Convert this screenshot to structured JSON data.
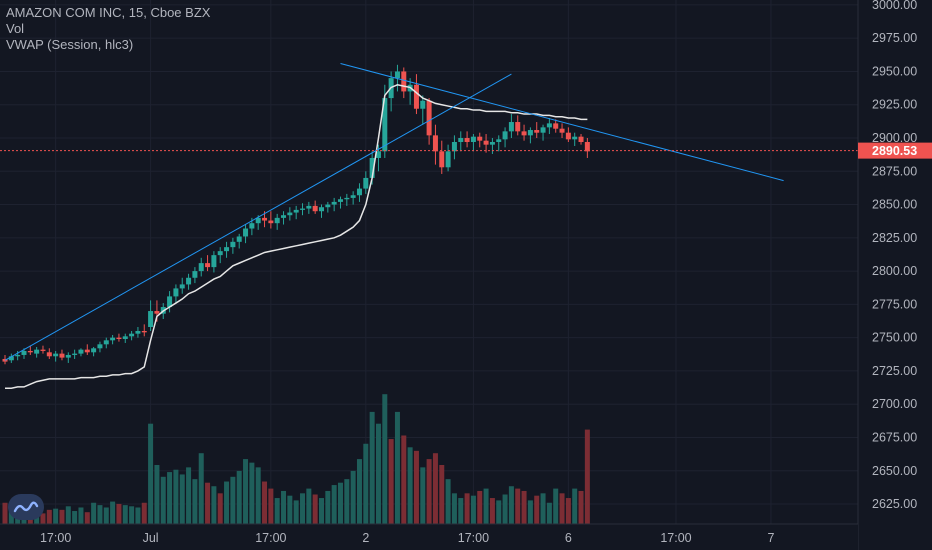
{
  "legend": {
    "symbol": "AMAZON COM INC, 15, Cboe BZX",
    "volume": "Vol",
    "vwap": "VWAP (Session, hlc3)"
  },
  "colors": {
    "background": "#131722",
    "grid": "#1e2230",
    "up": "#26a69a",
    "down": "#ef5350",
    "vol_up": "#1f5f5b",
    "vol_down": "#7c2d34",
    "vwap": "#e6e6e6",
    "trendline": "#2196f3",
    "axis_text": "#b2b5be",
    "price_label": "#ef5350"
  },
  "chart_data": {
    "type": "candlestick",
    "symbol": "AMAZON COM INC",
    "interval": "15",
    "exchange": "Cboe BZX",
    "y_axis": {
      "range": [
        2610,
        3010
      ],
      "ticks": [
        3000,
        2975,
        2950,
        2925,
        2900,
        2875,
        2850,
        2825,
        2800,
        2775,
        2750,
        2725,
        2700,
        2675,
        2650,
        2625
      ],
      "tick_labels": [
        "3000.00",
        "2975.00",
        "2950.00",
        "2925.00",
        "2900.00",
        "2875.00",
        "2850.00",
        "2825.00",
        "2800.00",
        "2775.00",
        "2750.00",
        "2725.00",
        "2700.00",
        "2675.00",
        "2650.00",
        "2625.00"
      ]
    },
    "x_axis": {
      "ticks": [
        "17:00",
        "Jul",
        "17:00",
        "2",
        "17:00",
        "6",
        "17:00",
        "7"
      ],
      "tick_bars": [
        8,
        23,
        42,
        57,
        74,
        89,
        106,
        121
      ]
    },
    "last_price": 2890.53,
    "last_price_label": "2890.53",
    "candles": [
      [
        2734,
        2737,
        2730,
        2732
      ],
      [
        2733,
        2738,
        2731,
        2736
      ],
      [
        2736,
        2740,
        2733,
        2737
      ],
      [
        2737,
        2742,
        2734,
        2740
      ],
      [
        2740,
        2744,
        2737,
        2739
      ],
      [
        2738,
        2743,
        2735,
        2741
      ],
      [
        2741,
        2744,
        2738,
        2740
      ],
      [
        2739,
        2742,
        2734,
        2736
      ],
      [
        2736,
        2740,
        2732,
        2738
      ],
      [
        2738,
        2741,
        2733,
        2735
      ],
      [
        2735,
        2739,
        2731,
        2737
      ],
      [
        2737,
        2741,
        2734,
        2738
      ],
      [
        2738,
        2742,
        2736,
        2741
      ],
      [
        2741,
        2745,
        2737,
        2739
      ],
      [
        2739,
        2743,
        2736,
        2742
      ],
      [
        2742,
        2747,
        2739,
        2745
      ],
      [
        2745,
        2750,
        2742,
        2748
      ],
      [
        2748,
        2752,
        2745,
        2750
      ],
      [
        2750,
        2753,
        2747,
        2749
      ],
      [
        2749,
        2753,
        2746,
        2751
      ],
      [
        2751,
        2755,
        2748,
        2753
      ],
      [
        2753,
        2758,
        2750,
        2755
      ],
      [
        2755,
        2760,
        2751,
        2754
      ],
      [
        2758,
        2778,
        2755,
        2770
      ],
      [
        2770,
        2778,
        2762,
        2768
      ],
      [
        2768,
        2776,
        2764,
        2773
      ],
      [
        2773,
        2785,
        2769,
        2781
      ],
      [
        2781,
        2790,
        2776,
        2787
      ],
      [
        2787,
        2795,
        2783,
        2790
      ],
      [
        2790,
        2798,
        2786,
        2795
      ],
      [
        2795,
        2803,
        2791,
        2800
      ],
      [
        2800,
        2810,
        2796,
        2806
      ],
      [
        2806,
        2812,
        2800,
        2803
      ],
      [
        2803,
        2815,
        2799,
        2812
      ],
      [
        2812,
        2818,
        2806,
        2815
      ],
      [
        2815,
        2822,
        2810,
        2818
      ],
      [
        2818,
        2825,
        2813,
        2822
      ],
      [
        2822,
        2828,
        2817,
        2826
      ],
      [
        2826,
        2835,
        2821,
        2832
      ],
      [
        2832,
        2840,
        2827,
        2836
      ],
      [
        2836,
        2842,
        2831,
        2840
      ],
      [
        2840,
        2845,
        2833,
        2838
      ],
      [
        2838,
        2845,
        2832,
        2836
      ],
      [
        2836,
        2843,
        2831,
        2840
      ],
      [
        2840,
        2845,
        2835,
        2842
      ],
      [
        2842,
        2848,
        2838,
        2844
      ],
      [
        2844,
        2849,
        2839,
        2846
      ],
      [
        2846,
        2851,
        2842,
        2847
      ],
      [
        2847,
        2852,
        2843,
        2849
      ],
      [
        2849,
        2853,
        2843,
        2845
      ],
      [
        2845,
        2850,
        2840,
        2848
      ],
      [
        2848,
        2852,
        2844,
        2850
      ],
      [
        2850,
        2855,
        2845,
        2852
      ],
      [
        2852,
        2856,
        2847,
        2854
      ],
      [
        2854,
        2858,
        2849,
        2855
      ],
      [
        2855,
        2860,
        2850,
        2857
      ],
      [
        2857,
        2866,
        2852,
        2862
      ],
      [
        2862,
        2875,
        2858,
        2870
      ],
      [
        2870,
        2890,
        2865,
        2885
      ],
      [
        2885,
        2895,
        2875,
        2890
      ],
      [
        2890,
        2940,
        2885,
        2930
      ],
      [
        2930,
        2950,
        2920,
        2945
      ],
      [
        2945,
        2955,
        2935,
        2950
      ],
      [
        2950,
        2953,
        2930,
        2935
      ],
      [
        2935,
        2945,
        2925,
        2940
      ],
      [
        2940,
        2948,
        2918,
        2922
      ],
      [
        2922,
        2932,
        2910,
        2928
      ],
      [
        2928,
        2930,
        2895,
        2902
      ],
      [
        2902,
        2910,
        2880,
        2890
      ],
      [
        2890,
        2898,
        2873,
        2878
      ],
      [
        2878,
        2895,
        2875,
        2890
      ],
      [
        2890,
        2902,
        2884,
        2897
      ],
      [
        2897,
        2905,
        2890,
        2900
      ],
      [
        2900,
        2905,
        2893,
        2897
      ],
      [
        2897,
        2903,
        2890,
        2901
      ],
      [
        2901,
        2904,
        2893,
        2898
      ],
      [
        2898,
        2903,
        2889,
        2895
      ],
      [
        2895,
        2900,
        2888,
        2897
      ],
      [
        2897,
        2902,
        2890,
        2899
      ],
      [
        2899,
        2908,
        2893,
        2905
      ],
      [
        2905,
        2918,
        2900,
        2912
      ],
      [
        2912,
        2917,
        2902,
        2905
      ],
      [
        2905,
        2910,
        2898,
        2902
      ],
      [
        2902,
        2908,
        2896,
        2906
      ],
      [
        2906,
        2912,
        2900,
        2904
      ],
      [
        2904,
        2910,
        2898,
        2908
      ],
      [
        2908,
        2915,
        2903,
        2911
      ],
      [
        2911,
        2914,
        2904,
        2907
      ],
      [
        2907,
        2911,
        2900,
        2904
      ],
      [
        2904,
        2908,
        2897,
        2899
      ],
      [
        2899,
        2904,
        2894,
        2901
      ],
      [
        2901,
        2903,
        2895,
        2897
      ],
      [
        2897,
        2900,
        2885,
        2890
      ]
    ],
    "volume": [
      {
        "v": 18,
        "up": false
      },
      {
        "v": 16,
        "up": true
      },
      {
        "v": 12,
        "up": true
      },
      {
        "v": 14,
        "up": true
      },
      {
        "v": 10,
        "up": false
      },
      {
        "v": 11,
        "up": true
      },
      {
        "v": 9,
        "up": false
      },
      {
        "v": 12,
        "up": false
      },
      {
        "v": 13,
        "up": true
      },
      {
        "v": 12,
        "up": false
      },
      {
        "v": 15,
        "up": true
      },
      {
        "v": 11,
        "up": true
      },
      {
        "v": 14,
        "up": true
      },
      {
        "v": 10,
        "up": false
      },
      {
        "v": 18,
        "up": true
      },
      {
        "v": 16,
        "up": true
      },
      {
        "v": 14,
        "up": true
      },
      {
        "v": 19,
        "up": true
      },
      {
        "v": 17,
        "up": false
      },
      {
        "v": 16,
        "up": true
      },
      {
        "v": 15,
        "up": true
      },
      {
        "v": 14,
        "up": true
      },
      {
        "v": 18,
        "up": false
      },
      {
        "v": 85,
        "up": true
      },
      {
        "v": 50,
        "up": true
      },
      {
        "v": 40,
        "up": true
      },
      {
        "v": 44,
        "up": true
      },
      {
        "v": 46,
        "up": true
      },
      {
        "v": 42,
        "up": true
      },
      {
        "v": 48,
        "up": true
      },
      {
        "v": 38,
        "up": true
      },
      {
        "v": 60,
        "up": true
      },
      {
        "v": 35,
        "up": false
      },
      {
        "v": 32,
        "up": true
      },
      {
        "v": 26,
        "up": false
      },
      {
        "v": 36,
        "up": true
      },
      {
        "v": 40,
        "up": true
      },
      {
        "v": 45,
        "up": true
      },
      {
        "v": 55,
        "up": true
      },
      {
        "v": 52,
        "up": true
      },
      {
        "v": 48,
        "up": true
      },
      {
        "v": 36,
        "up": false
      },
      {
        "v": 30,
        "up": false
      },
      {
        "v": 22,
        "up": true
      },
      {
        "v": 28,
        "up": true
      },
      {
        "v": 24,
        "up": true
      },
      {
        "v": 20,
        "up": true
      },
      {
        "v": 26,
        "up": true
      },
      {
        "v": 30,
        "up": true
      },
      {
        "v": 25,
        "up": false
      },
      {
        "v": 22,
        "up": true
      },
      {
        "v": 28,
        "up": true
      },
      {
        "v": 33,
        "up": true
      },
      {
        "v": 35,
        "up": true
      },
      {
        "v": 38,
        "up": true
      },
      {
        "v": 45,
        "up": true
      },
      {
        "v": 55,
        "up": true
      },
      {
        "v": 68,
        "up": true
      },
      {
        "v": 95,
        "up": true
      },
      {
        "v": 85,
        "up": true
      },
      {
        "v": 110,
        "up": true
      },
      {
        "v": 72,
        "up": false
      },
      {
        "v": 95,
        "up": true
      },
      {
        "v": 75,
        "up": false
      },
      {
        "v": 65,
        "up": true
      },
      {
        "v": 62,
        "up": false
      },
      {
        "v": 48,
        "up": true
      },
      {
        "v": 55,
        "up": false
      },
      {
        "v": 60,
        "up": false
      },
      {
        "v": 50,
        "up": false
      },
      {
        "v": 38,
        "up": true
      },
      {
        "v": 26,
        "up": true
      },
      {
        "v": 22,
        "up": true
      },
      {
        "v": 26,
        "up": false
      },
      {
        "v": 24,
        "up": true
      },
      {
        "v": 28,
        "up": false
      },
      {
        "v": 30,
        "up": true
      },
      {
        "v": 22,
        "up": false
      },
      {
        "v": 20,
        "up": true
      },
      {
        "v": 25,
        "up": true
      },
      {
        "v": 32,
        "up": true
      },
      {
        "v": 30,
        "up": false
      },
      {
        "v": 28,
        "up": false
      },
      {
        "v": 20,
        "up": true
      },
      {
        "v": 24,
        "up": false
      },
      {
        "v": 26,
        "up": true
      },
      {
        "v": 18,
        "up": true
      },
      {
        "v": 30,
        "up": true
      },
      {
        "v": 26,
        "up": false
      },
      {
        "v": 22,
        "up": false
      },
      {
        "v": 30,
        "up": true
      },
      {
        "v": 28,
        "up": false
      },
      {
        "v": 80,
        "up": false
      }
    ],
    "vwap": [
      2712,
      2712,
      2713,
      2713,
      2715,
      2717,
      2718,
      2719,
      2719,
      2719,
      2719,
      2719,
      2720,
      2720,
      2720,
      2721,
      2721,
      2722,
      2722,
      2723,
      2723,
      2725,
      2728,
      2748,
      2766,
      2770,
      2773,
      2776,
      2779,
      2783,
      2785,
      2788,
      2791,
      2794,
      2796,
      2800,
      2804,
      2806,
      2808,
      2810,
      2812,
      2814,
      2815,
      2816,
      2817,
      2818,
      2819,
      2820,
      2821,
      2822,
      2823,
      2824,
      2825,
      2827,
      2830,
      2833,
      2838,
      2850,
      2870,
      2900,
      2932,
      2938,
      2940,
      2939,
      2938,
      2934,
      2930,
      2928,
      2926,
      2925,
      2924,
      2923,
      2922,
      2922,
      2921,
      2921,
      2920,
      2920,
      2920,
      2920,
      2919,
      2919,
      2918,
      2918,
      2918,
      2917,
      2917,
      2916,
      2916,
      2915,
      2915,
      2914,
      2914
    ],
    "trendlines": [
      {
        "from": [
          0,
          2733
        ],
        "to": [
          80,
          2948
        ]
      },
      {
        "from": [
          53,
          2956
        ],
        "to": [
          123,
          2868
        ]
      }
    ]
  }
}
